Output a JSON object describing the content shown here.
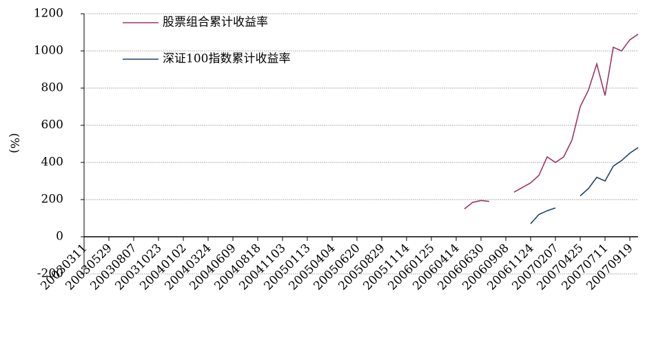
{
  "chart_data": {
    "type": "line",
    "y_label": "(%)",
    "categories": [
      "20030311",
      null,
      null,
      "20030529",
      null,
      null,
      "20030807",
      null,
      null,
      "20031023",
      null,
      null,
      "20040102",
      null,
      null,
      "20040324",
      null,
      null,
      "20040609",
      null,
      null,
      "20040818",
      null,
      null,
      "20041103",
      null,
      null,
      "20050113",
      null,
      null,
      "20050404",
      null,
      null,
      "20050620",
      null,
      null,
      "20050829",
      null,
      null,
      "20051114",
      null,
      null,
      "20060125",
      null,
      null,
      "20060414",
      null,
      null,
      "20060630",
      null,
      null,
      "20060908",
      null,
      null,
      "20061124",
      null,
      null,
      "20070207",
      null,
      null,
      "20070425",
      null,
      null,
      "20070711",
      null,
      null,
      "20070919",
      null
    ],
    "series": [
      {
        "name": "股票组合累计收益率",
        "color": "#9b3465",
        "values": [
          null,
          null,
          null,
          null,
          null,
          null,
          null,
          null,
          null,
          null,
          null,
          null,
          null,
          null,
          null,
          null,
          null,
          null,
          null,
          null,
          null,
          null,
          null,
          null,
          null,
          null,
          null,
          null,
          null,
          null,
          null,
          null,
          null,
          null,
          null,
          null,
          null,
          null,
          null,
          null,
          null,
          null,
          null,
          null,
          null,
          null,
          150,
          185,
          195,
          190,
          null,
          null,
          240,
          265,
          290,
          330,
          430,
          400,
          430,
          520,
          700,
          790,
          930,
          760,
          1020,
          1000,
          1060,
          1090
        ]
      },
      {
        "name": "深证100指数累计收益率",
        "color": "#1c3f6e",
        "values": [
          null,
          null,
          null,
          null,
          null,
          null,
          null,
          null,
          null,
          null,
          null,
          null,
          null,
          null,
          null,
          null,
          null,
          null,
          null,
          null,
          null,
          null,
          null,
          null,
          null,
          null,
          null,
          null,
          null,
          null,
          null,
          null,
          null,
          null,
          null,
          null,
          null,
          null,
          null,
          null,
          null,
          null,
          null,
          null,
          null,
          null,
          null,
          null,
          null,
          null,
          null,
          null,
          null,
          null,
          70,
          120,
          140,
          155,
          null,
          null,
          220,
          260,
          320,
          300,
          380,
          410,
          450,
          480
        ]
      }
    ],
    "ylim": [
      -200,
      1200
    ],
    "yticks": [
      -200,
      0,
      200,
      400,
      600,
      800,
      1000,
      1200
    ],
    "grid": true
  }
}
